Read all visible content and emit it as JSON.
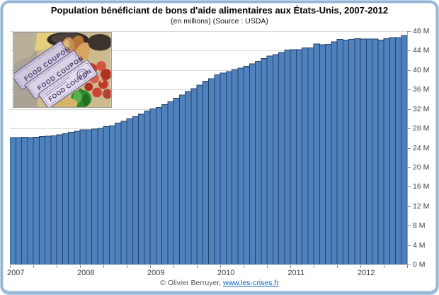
{
  "footer": {
    "credit": "© Olivier Berruyer,",
    "link": "www.les-crises.fr"
  },
  "inset": {
    "coupon_text": "FOOD COUPON"
  },
  "chart_data": {
    "type": "bar",
    "title": "Population bénéficiant de bons d'aide alimentaires aux États-Unis, 2007-2012",
    "subtitle": "(en millions) (Source : USDA)",
    "unit": "millions of persons",
    "ylim": [
      0,
      48
    ],
    "ytick_step": 4,
    "y_tick_labels": [
      "48 M",
      "44 M",
      "40 M",
      "36 M",
      "32 M",
      "28 M",
      "24 M",
      "20 M",
      "16 M",
      "12 M",
      "8 M",
      "4 M",
      "0 M"
    ],
    "x_axis_minor_tick_every_months": 4,
    "grid": true,
    "legend": "none",
    "bar_color": "#4f81bd",
    "bar_border_color": "#24436b",
    "grid_color": "#d9d9d9",
    "years": [
      {
        "year": "2007",
        "values": [
          26.1,
          26.1,
          26.2,
          26.1,
          26.2,
          26.3,
          26.4,
          26.5,
          26.7,
          26.9,
          27.2,
          27.4
        ]
      },
      {
        "year": "2008",
        "values": [
          27.7,
          27.7,
          27.9,
          28.0,
          28.4,
          28.5,
          29.1,
          29.5,
          30.0,
          30.4,
          30.9,
          31.6
        ]
      },
      {
        "year": "2009",
        "values": [
          32.0,
          32.3,
          32.9,
          33.5,
          34.2,
          34.9,
          35.6,
          36.2,
          36.9,
          37.7,
          38.2,
          39.0
        ]
      },
      {
        "year": "2010",
        "values": [
          39.4,
          39.7,
          40.1,
          40.4,
          40.8,
          41.3,
          41.8,
          42.4,
          42.9,
          43.2,
          43.6,
          44.1
        ]
      },
      {
        "year": "2011",
        "values": [
          44.2,
          44.2,
          44.6,
          44.6,
          45.4,
          45.2,
          45.3,
          45.8,
          46.3,
          46.2,
          46.3,
          46.5
        ]
      },
      {
        "year": "2012",
        "values": [
          46.4,
          46.4,
          46.4,
          46.2,
          46.5,
          46.7,
          46.7,
          47.1
        ]
      }
    ]
  }
}
